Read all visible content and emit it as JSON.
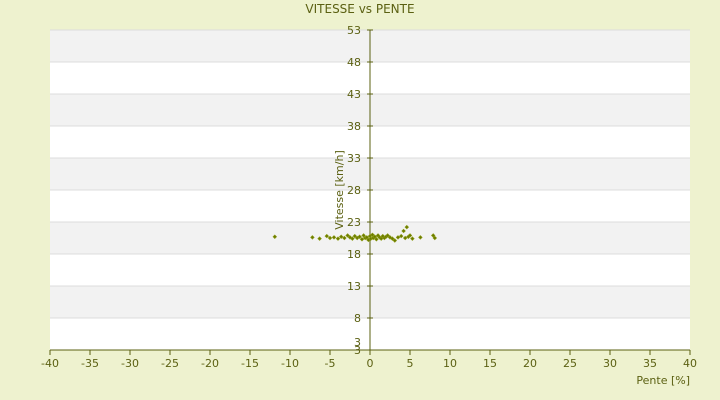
{
  "chart_data": {
    "type": "scatter",
    "title": "VITESSE vs PENTE",
    "xlabel": "Pente [%]",
    "ylabel": "Vitesse [km/h]",
    "xlim": [
      -40,
      40
    ],
    "ylim": [
      3,
      53
    ],
    "x_ticks": [
      "-40",
      "-35",
      "-30",
      "-25",
      "-20",
      "-15",
      "-10",
      "-5",
      "0",
      "5",
      "10",
      "15",
      "20",
      "25",
      "30",
      "35",
      "40"
    ],
    "y_ticks": [
      "3",
      "8",
      "13",
      "18",
      "23",
      "28",
      "33",
      "38",
      "43",
      "48",
      "53"
    ],
    "y_tick_bottom_label": "3",
    "grid": true,
    "colors": {
      "background": "#eef2cf",
      "plot_band_light": "#ffffff",
      "plot_band_dark": "#f2f2f2",
      "axis": "#5b6012",
      "point": "#6b7a00"
    },
    "points": [
      {
        "x": -11.9,
        "y": 20.7
      },
      {
        "x": -7.2,
        "y": 20.6
      },
      {
        "x": -6.3,
        "y": 20.4
      },
      {
        "x": -5.4,
        "y": 20.8
      },
      {
        "x": -5.0,
        "y": 20.5
      },
      {
        "x": -4.5,
        "y": 20.6
      },
      {
        "x": -4.0,
        "y": 20.4
      },
      {
        "x": -3.6,
        "y": 20.7
      },
      {
        "x": -3.2,
        "y": 20.5
      },
      {
        "x": -2.8,
        "y": 20.9
      },
      {
        "x": -2.5,
        "y": 20.6
      },
      {
        "x": -2.2,
        "y": 20.4
      },
      {
        "x": -1.9,
        "y": 20.8
      },
      {
        "x": -1.6,
        "y": 20.5
      },
      {
        "x": -1.3,
        "y": 20.7
      },
      {
        "x": -1.0,
        "y": 20.3
      },
      {
        "x": -0.8,
        "y": 20.9
      },
      {
        "x": -0.6,
        "y": 20.5
      },
      {
        "x": -0.4,
        "y": 20.6
      },
      {
        "x": -0.2,
        "y": 20.2
      },
      {
        "x": 0.0,
        "y": 20.8
      },
      {
        "x": 0.1,
        "y": 20.4
      },
      {
        "x": 0.3,
        "y": 21.0
      },
      {
        "x": 0.4,
        "y": 20.5
      },
      {
        "x": 0.6,
        "y": 20.7
      },
      {
        "x": 0.8,
        "y": 20.3
      },
      {
        "x": 1.0,
        "y": 20.9
      },
      {
        "x": 1.2,
        "y": 20.6
      },
      {
        "x": 1.4,
        "y": 20.4
      },
      {
        "x": 1.6,
        "y": 20.8
      },
      {
        "x": 1.8,
        "y": 20.5
      },
      {
        "x": 2.0,
        "y": 20.7
      },
      {
        "x": 2.2,
        "y": 20.9
      },
      {
        "x": 2.5,
        "y": 20.6
      },
      {
        "x": 2.8,
        "y": 20.4
      },
      {
        "x": 3.1,
        "y": 20.1
      },
      {
        "x": 3.5,
        "y": 20.6
      },
      {
        "x": 3.9,
        "y": 20.8
      },
      {
        "x": 4.2,
        "y": 21.6
      },
      {
        "x": 4.4,
        "y": 20.5
      },
      {
        "x": 4.6,
        "y": 22.2
      },
      {
        "x": 4.8,
        "y": 20.7
      },
      {
        "x": 5.0,
        "y": 20.9
      },
      {
        "x": 5.3,
        "y": 20.4
      },
      {
        "x": 6.3,
        "y": 20.6
      },
      {
        "x": 7.9,
        "y": 20.9
      },
      {
        "x": 8.1,
        "y": 20.5
      }
    ]
  }
}
